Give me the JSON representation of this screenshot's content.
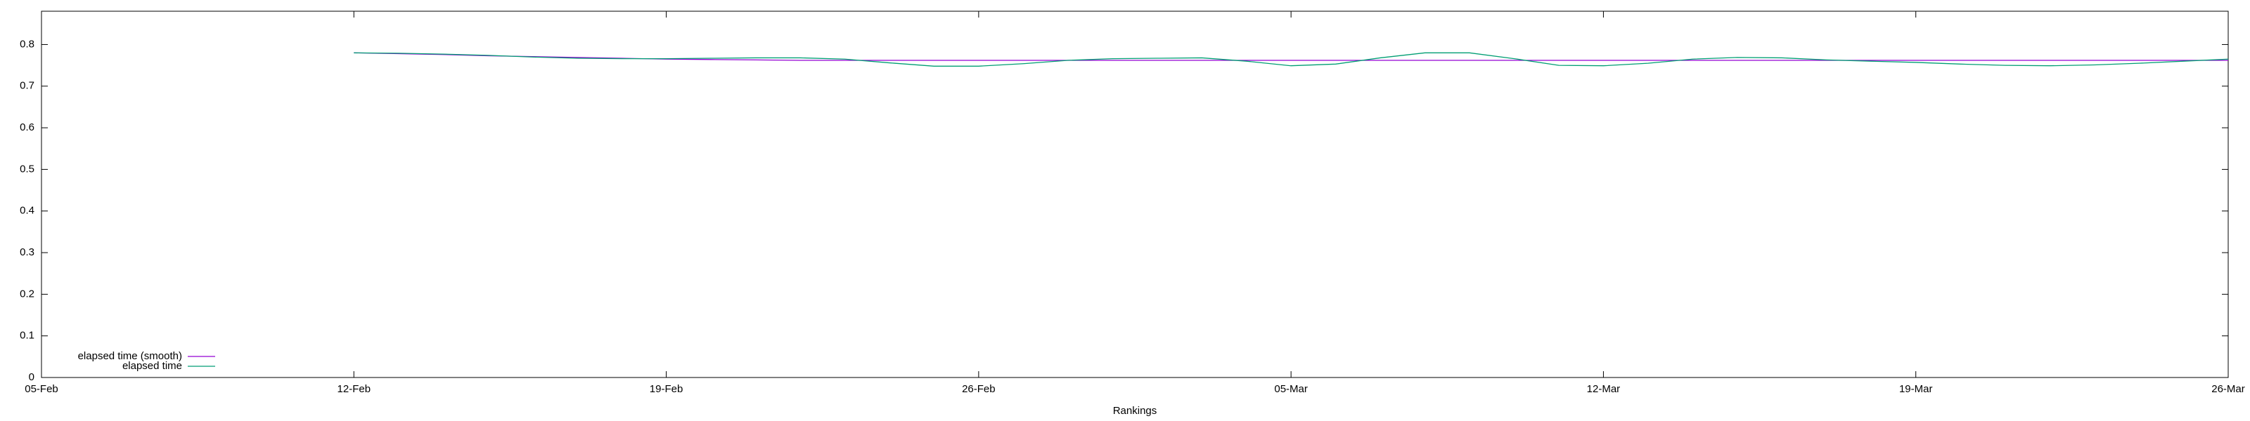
{
  "chart_data": {
    "type": "line",
    "xlabel": "Rankings",
    "x": [
      "12-Feb",
      "13-Feb",
      "14-Feb",
      "15-Feb",
      "16-Feb",
      "17-Feb",
      "18-Feb",
      "19-Feb",
      "20-Feb",
      "21-Feb",
      "22-Feb",
      "23-Feb",
      "24-Feb",
      "25-Feb",
      "26-Feb",
      "27-Feb",
      "28-Feb",
      "01-Mar",
      "02-Mar",
      "03-Mar",
      "04-Mar",
      "05-Mar",
      "06-Mar",
      "07-Mar",
      "08-Mar",
      "09-Mar",
      "10-Mar",
      "11-Mar",
      "12-Mar",
      "13-Mar",
      "14-Mar",
      "15-Mar",
      "16-Mar",
      "17-Mar",
      "18-Mar",
      "19-Mar",
      "20-Mar",
      "21-Mar",
      "22-Mar",
      "23-Mar",
      "24-Mar",
      "25-Mar",
      "26-Mar"
    ],
    "series": [
      {
        "name": "elapsed time (smooth)",
        "color": "#9400d3",
        "values": [
          0.78,
          0.778,
          0.776,
          0.773,
          0.771,
          0.769,
          0.767,
          0.765,
          0.764,
          0.763,
          0.762,
          0.762,
          0.762,
          0.762,
          0.762,
          0.762,
          0.762,
          0.762,
          0.762,
          0.762,
          0.762,
          0.762,
          0.762,
          0.762,
          0.762,
          0.762,
          0.762,
          0.762,
          0.762,
          0.762,
          0.762,
          0.762,
          0.762,
          0.762,
          0.762,
          0.762,
          0.762,
          0.762,
          0.762,
          0.762,
          0.762,
          0.762,
          0.762
        ]
      },
      {
        "name": "elapsed time",
        "color": "#009e73",
        "values": [
          0.78,
          0.779,
          0.777,
          0.774,
          0.77,
          0.767,
          0.766,
          0.766,
          0.767,
          0.768,
          0.768,
          0.765,
          0.756,
          0.748,
          0.748,
          0.754,
          0.762,
          0.766,
          0.767,
          0.768,
          0.76,
          0.749,
          0.753,
          0.768,
          0.78,
          0.78,
          0.766,
          0.75,
          0.749,
          0.755,
          0.765,
          0.769,
          0.768,
          0.763,
          0.76,
          0.757,
          0.753,
          0.75,
          0.749,
          0.751,
          0.755,
          0.76,
          0.765
        ]
      }
    ],
    "xlim": [
      "05-Feb",
      "26-Mar"
    ],
    "xticks": [
      "05-Feb",
      "12-Feb",
      "19-Feb",
      "26-Feb",
      "05-Mar",
      "12-Mar",
      "19-Mar",
      "26-Mar"
    ],
    "ylim": [
      0,
      0.88
    ],
    "yticks": [
      0,
      0.1,
      0.2,
      0.3,
      0.4,
      0.5,
      0.6,
      0.7,
      0.8
    ],
    "legend": "bottom-left"
  }
}
